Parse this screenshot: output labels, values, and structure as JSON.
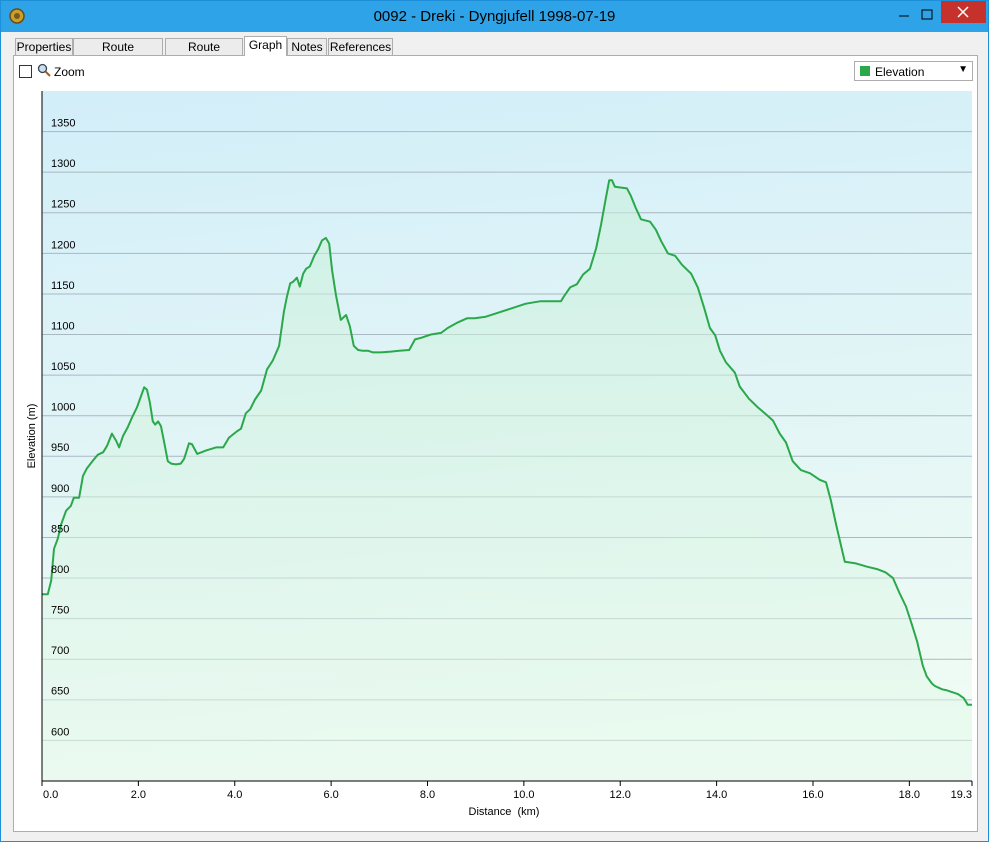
{
  "window": {
    "title": "0092 - Dreki - Dyngjufell 1998-07-19"
  },
  "tabs": [
    "Properties",
    "Route Directions",
    "Route Options",
    "Graph",
    "Notes",
    "References"
  ],
  "selected_tab": "Graph",
  "zoom_label": "Zoom",
  "chart_data": {
    "type": "line",
    "xlabel": "Distance  (km)",
    "ylabel": "Elevation (m)",
    "xlim": [
      0,
      19.3
    ],
    "ylim": [
      550,
      1400
    ],
    "xticks": [
      {
        "value": 0,
        "label": "0.0"
      },
      {
        "value": 2,
        "label": "2.0"
      },
      {
        "value": 4,
        "label": "4.0"
      },
      {
        "value": 6,
        "label": "6.0"
      },
      {
        "value": 8,
        "label": "8.0"
      },
      {
        "value": 10,
        "label": "10.0"
      },
      {
        "value": 12,
        "label": "12.0"
      },
      {
        "value": 14,
        "label": "14.0"
      },
      {
        "value": 16,
        "label": "16.0"
      },
      {
        "value": 18,
        "label": "18.0"
      },
      19.3
    ],
    "yticks": [
      600,
      650,
      700,
      750,
      800,
      850,
      900,
      950,
      1000,
      1050,
      1100,
      1150,
      1200,
      1250,
      1300,
      1350
    ],
    "grid": true,
    "x": [
      0,
      0.12,
      0.19,
      0.25,
      0.33,
      0.39,
      0.5,
      0.6,
      0.66,
      0.77,
      0.85,
      0.93,
      1.06,
      1.16,
      1.27,
      1.35,
      1.45,
      1.54,
      1.6,
      1.68,
      1.78,
      1.87,
      1.97,
      2.03,
      2.12,
      2.18,
      2.24,
      2.3,
      2.35,
      2.41,
      2.47,
      2.53,
      2.61,
      2.68,
      2.78,
      2.88,
      2.95,
      3.05,
      3.11,
      3.22,
      3.4,
      3.61,
      3.76,
      3.88,
      4.05,
      4.13,
      4.23,
      4.32,
      4.42,
      4.55,
      4.67,
      4.79,
      4.92,
      5.02,
      5.08,
      5.15,
      5.21,
      5.29,
      5.35,
      5.42,
      5.48,
      5.56,
      5.65,
      5.73,
      5.81,
      5.89,
      5.96,
      6.02,
      6.1,
      6.2,
      6.31,
      6.39,
      6.47,
      6.56,
      6.66,
      6.77,
      6.87,
      7.03,
      7.24,
      7.41,
      7.62,
      7.74,
      7.87,
      8.07,
      8.28,
      8.42,
      8.63,
      8.82,
      8.98,
      9.21,
      9.42,
      9.73,
      10.04,
      10.35,
      10.77,
      10.83,
      10.96,
      11.1,
      11.23,
      11.37,
      11.5,
      11.6,
      11.68,
      11.77,
      11.83,
      11.89,
      12.02,
      12.14,
      12.22,
      12.33,
      12.43,
      12.62,
      12.74,
      12.85,
      12.99,
      13.14,
      13.28,
      13.47,
      13.61,
      13.74,
      13.86,
      13.97,
      14.07,
      14.19,
      14.38,
      14.48,
      14.67,
      14.86,
      15.02,
      15.17,
      15.31,
      15.44,
      15.58,
      15.75,
      15.94,
      16.14,
      16.27,
      16.37,
      16.48,
      16.66,
      16.89,
      17.12,
      17.33,
      17.51,
      17.66,
      17.8,
      17.93,
      18.05,
      18.16,
      18.28,
      18.36,
      18.47,
      18.53,
      18.68,
      18.76,
      18.86,
      19.01,
      19.13,
      19.21,
      19.3
    ],
    "series": [
      {
        "name": "Elevation",
        "color": "#2aa84a",
        "values": [
          780,
          780,
          797,
          836,
          849,
          865,
          883,
          889,
          899,
          899,
          926,
          935,
          945,
          952,
          955,
          963,
          978,
          969,
          961,
          975,
          986,
          998,
          1010,
          1020,
          1035,
          1032,
          1016,
          993,
          989,
          993,
          987,
          969,
          944,
          941,
          940,
          941,
          947,
          966,
          965,
          953,
          957,
          961,
          961,
          973,
          981,
          984,
          1003,
          1008,
          1020,
          1031,
          1057,
          1068,
          1086,
          1128,
          1146,
          1163,
          1165,
          1170,
          1159,
          1175,
          1181,
          1184,
          1197,
          1205,
          1216,
          1219,
          1212,
          1179,
          1149,
          1118,
          1124,
          1110,
          1086,
          1081,
          1080,
          1080,
          1078,
          1078,
          1079,
          1080,
          1081,
          1094,
          1096,
          1100,
          1102,
          1108,
          1115,
          1120,
          1120,
          1122,
          1126,
          1132,
          1138,
          1141,
          1141,
          1147,
          1158,
          1162,
          1174,
          1181,
          1206,
          1235,
          1261,
          1290,
          1290,
          1282,
          1281,
          1280,
          1271,
          1255,
          1242,
          1239,
          1229,
          1215,
          1200,
          1197,
          1186,
          1175,
          1158,
          1133,
          1108,
          1099,
          1080,
          1066,
          1053,
          1036,
          1021,
          1010,
          1002,
          994,
          978,
          967,
          944,
          933,
          929,
          921,
          918,
          896,
          866,
          820,
          818,
          814,
          811,
          807,
          800,
          781,
          765,
          743,
          722,
          692,
          679,
          670,
          667,
          663,
          662,
          660,
          657,
          652,
          644,
          644
        ]
      }
    ]
  }
}
